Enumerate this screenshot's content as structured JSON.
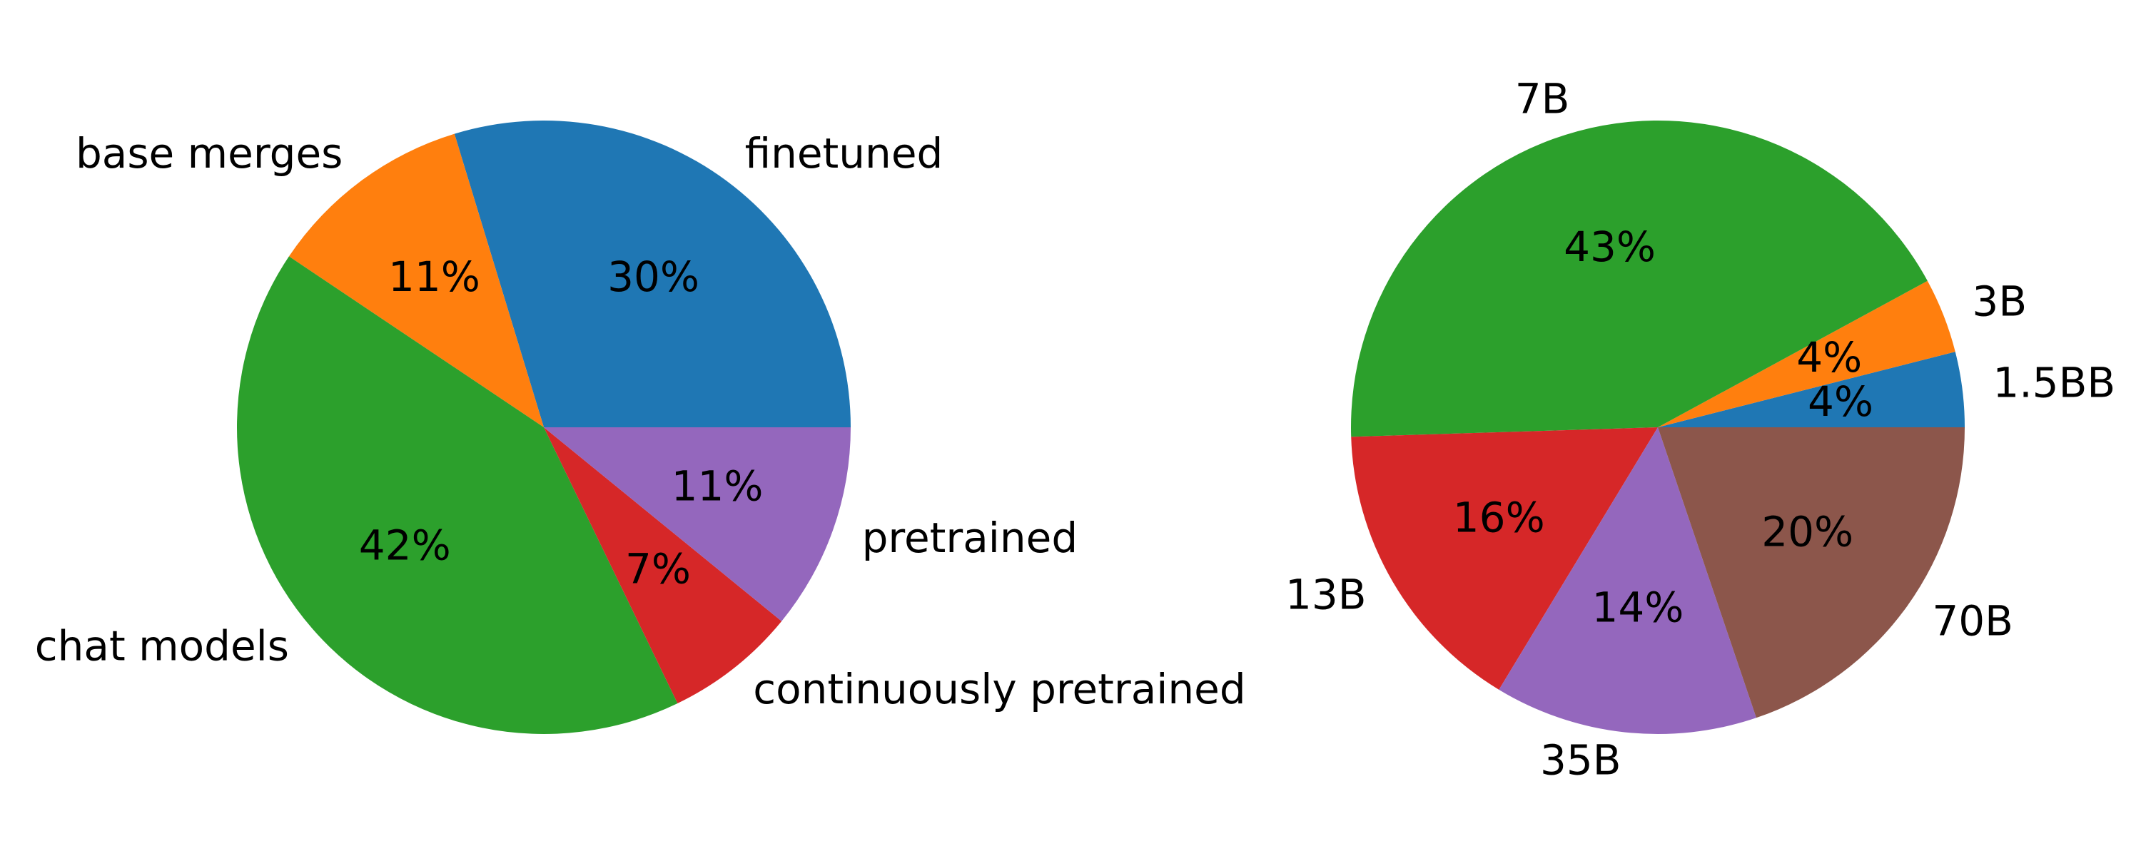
{
  "chart_data": [
    {
      "type": "pie",
      "labels": [
        "finetuned",
        "base merges",
        "chat models",
        "continuously pretrained",
        "pretrained"
      ],
      "values": [
        30,
        11,
        42,
        7,
        11
      ],
      "value_labels": [
        "30%",
        "11%",
        "42%",
        "7%",
        "11%"
      ],
      "colors": [
        "#1f77b4",
        "#ff7f0e",
        "#2ca02c",
        "#d62728",
        "#9467bd"
      ]
    },
    {
      "type": "pie",
      "labels": [
        "1.5BB",
        "3B",
        "7B",
        "13B",
        "35B",
        "70B"
      ],
      "values": [
        4,
        4,
        43,
        16,
        14,
        20
      ],
      "value_labels": [
        "4%",
        "4%",
        "43%",
        "16%",
        "14%",
        "20%"
      ],
      "colors": [
        "#1f77b4",
        "#ff7f0e",
        "#2ca02c",
        "#d62728",
        "#9467bd",
        "#8c564b"
      ]
    }
  ]
}
